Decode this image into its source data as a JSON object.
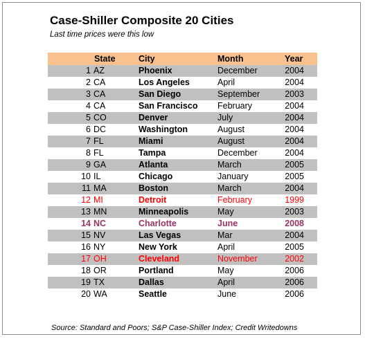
{
  "chart_data": {
    "type": "table",
    "title": "Case-Shiller Composite 20 Cities",
    "subtitle": "Last time prices were this low",
    "columns": [
      "",
      "State",
      "City",
      "Month",
      "Year"
    ],
    "rows": [
      {
        "num": "1",
        "state": "AZ",
        "city": "Phoenix",
        "month": "December",
        "year": "2004"
      },
      {
        "num": "2",
        "state": "CA",
        "city": "Los Angeles",
        "month": "April",
        "year": "2004"
      },
      {
        "num": "3",
        "state": "CA",
        "city": "San Diego",
        "month": "September",
        "year": "2003"
      },
      {
        "num": "4",
        "state": "CA",
        "city": "San Francisco",
        "month": "February",
        "year": "2004"
      },
      {
        "num": "5",
        "state": "CO",
        "city": "Denver",
        "month": "July",
        "year": "2004"
      },
      {
        "num": "6",
        "state": "DC",
        "city": "Washington",
        "month": "August",
        "year": "2004"
      },
      {
        "num": "7",
        "state": "FL",
        "city": "Miami",
        "month": "August",
        "year": "2004"
      },
      {
        "num": "8",
        "state": "FL",
        "city": "Tampa",
        "month": "December",
        "year": "2004"
      },
      {
        "num": "9",
        "state": "GA",
        "city": "Atlanta",
        "month": "March",
        "year": "2005"
      },
      {
        "num": "10",
        "state": "IL",
        "city": "Chicago",
        "month": "January",
        "year": "2005"
      },
      {
        "num": "11",
        "state": "MA",
        "city": "Boston",
        "month": "March",
        "year": "2004"
      },
      {
        "num": "12",
        "state": "MI",
        "city": "Detroit",
        "month": "February",
        "year": "1999",
        "highlight": "red"
      },
      {
        "num": "13",
        "state": "MN",
        "city": "Minneapolis",
        "month": "May",
        "year": "2003"
      },
      {
        "num": "14",
        "state": "NC",
        "city": "Charlotte",
        "month": "June",
        "year": "2008",
        "highlight": "purple"
      },
      {
        "num": "15",
        "state": "NV",
        "city": "Las Vegas",
        "month": "Mar",
        "year": "2004"
      },
      {
        "num": "16",
        "state": "NY",
        "city": "New York",
        "month": "April",
        "year": "2005"
      },
      {
        "num": "17",
        "state": "OH",
        "city": "Cleveland",
        "month": "November",
        "year": "2002",
        "highlight": "red"
      },
      {
        "num": "18",
        "state": "OR",
        "city": "Portland",
        "month": "May",
        "year": "2006"
      },
      {
        "num": "19",
        "state": "TX",
        "city": "Dallas",
        "month": "April",
        "year": "2006"
      },
      {
        "num": "20",
        "state": "WA",
        "city": "Seattle",
        "month": "June",
        "year": "2006"
      }
    ],
    "source": "Source: Standard and Poors; S&P Case-Shiller Index; Credit Writedowns",
    "colors": {
      "header_fill": "#f8c18e",
      "shaded_row_fill": "#c0c0c0",
      "highlight_red": "#ff0000",
      "highlight_purple": "#993366"
    }
  }
}
